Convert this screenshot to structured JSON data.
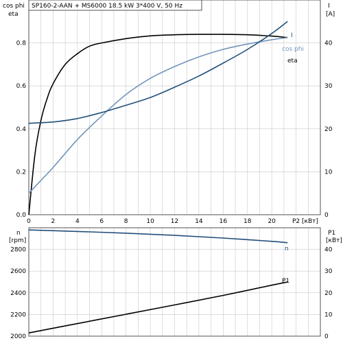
{
  "title": "SP160-2-AAN + MS6000   18.5 kW   3*400 V, 50 Hz",
  "colors": {
    "eta": "#000000",
    "cosphi": "#7094bb",
    "I": "#1f4e79",
    "n": "#1f4e79",
    "P1": "#000000",
    "grid": "#c8c8c8",
    "frame": "#505050"
  },
  "chart_data": [
    {
      "type": "line",
      "xlabel": "P2 [кВт]",
      "ylabel_left": [
        "cos phi",
        "eta"
      ],
      "ylabel_right": [
        "I",
        "[A]"
      ],
      "xlim": [
        0,
        24
      ],
      "x_ticks": [
        0,
        2,
        4,
        6,
        8,
        10,
        12,
        14,
        16,
        18,
        20
      ],
      "ylim_left": [
        0,
        1.0
      ],
      "y_ticks_left": [
        "0.0",
        "0.2",
        "0.4",
        "0.6",
        "0.8"
      ],
      "ylim_right": [
        0,
        50
      ],
      "y_ticks_right": [
        "0",
        "10",
        "20",
        "30",
        "40"
      ],
      "series": [
        {
          "name": "eta",
          "axis": "left",
          "x": [
            0,
            0.5,
            1,
            1.5,
            2,
            3,
            4,
            5,
            6,
            8,
            10,
            12,
            14,
            16,
            18,
            20,
            21.3
          ],
          "values": [
            0,
            0.28,
            0.44,
            0.54,
            0.61,
            0.7,
            0.75,
            0.785,
            0.8,
            0.82,
            0.833,
            0.838,
            0.84,
            0.84,
            0.838,
            0.832,
            0.825
          ]
        },
        {
          "name": "cos phi",
          "axis": "left",
          "x": [
            0,
            1,
            2,
            4,
            6,
            8,
            10,
            12,
            14,
            16,
            18,
            20,
            21.3
          ],
          "values": [
            0.1,
            0.16,
            0.22,
            0.35,
            0.46,
            0.56,
            0.635,
            0.69,
            0.735,
            0.77,
            0.795,
            0.815,
            0.825
          ]
        },
        {
          "name": "I",
          "axis": "right",
          "x": [
            0,
            2,
            4,
            6,
            8,
            10,
            12,
            14,
            16,
            18,
            20,
            21.3
          ],
          "values": [
            21.3,
            21.6,
            22.4,
            23.8,
            25.5,
            27.3,
            29.7,
            32.3,
            35.3,
            38.5,
            42.2,
            45.0
          ]
        }
      ]
    },
    {
      "type": "line",
      "ylabel_left": [
        "n",
        "[rpm]"
      ],
      "ylabel_right": [
        "P1",
        "[кВт]"
      ],
      "xlim": [
        0,
        24
      ],
      "ylim_left": [
        2000,
        3000
      ],
      "y_ticks_left": [
        "2000",
        "2200",
        "2400",
        "2600",
        "2800"
      ],
      "ylim_right": [
        0,
        50
      ],
      "y_ticks_right": [
        "0",
        "10",
        "20",
        "30",
        "40"
      ],
      "series": [
        {
          "name": "n",
          "axis": "left",
          "x": [
            0,
            4,
            8,
            12,
            16,
            20,
            21.3
          ],
          "values": [
            2980,
            2966,
            2950,
            2930,
            2905,
            2875,
            2862
          ]
        },
        {
          "name": "P1",
          "axis": "right",
          "x": [
            0,
            4,
            8,
            12,
            16,
            20,
            21.3
          ],
          "values": [
            1.5,
            5.8,
            10.1,
            14.4,
            18.8,
            23.5,
            25.0
          ]
        }
      ]
    }
  ]
}
